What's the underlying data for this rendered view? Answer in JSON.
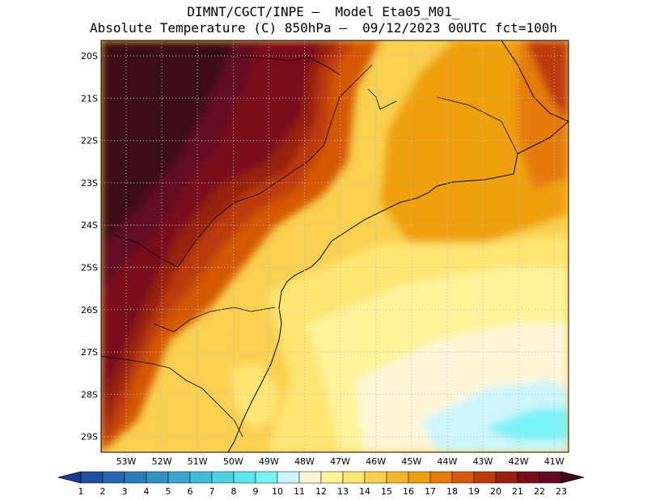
{
  "header": {
    "line1": "DIMNT/CGCT/INPE —  Model Eta05_M01_",
    "line2": "Absolute Temperature (C) 850hPa —  09/12/2023 00UTC fct=100h"
  },
  "map": {
    "lat_labels": [
      "20S",
      "21S",
      "22S",
      "23S",
      "24S",
      "25S",
      "26S",
      "27S",
      "28S",
      "29S"
    ],
    "lon_labels": [
      "53W",
      "52W",
      "51W",
      "50W",
      "49W",
      "48W",
      "47W",
      "46W",
      "45W",
      "44W",
      "43W",
      "42W",
      "41W"
    ]
  },
  "colorbar": {
    "labels": [
      "1",
      "2",
      "3",
      "4",
      "5",
      "6",
      "7",
      "8",
      "9",
      "10",
      "11",
      "12",
      "13",
      "14",
      "15",
      "16",
      "17",
      "18",
      "19",
      "20",
      "21",
      "22",
      "23"
    ],
    "colors": [
      "#1c3c8c",
      "#1f4f9e",
      "#2565ad",
      "#2b7bb8",
      "#3390c2",
      "#3aa6cc",
      "#43bcd6",
      "#4cd2e2",
      "#5ae6ee",
      "#78f3f6",
      "#cdf5fb",
      "#fff6d8",
      "#fff39a",
      "#ffe571",
      "#f9d050",
      "#f3b72f",
      "#efa010",
      "#e57a07",
      "#d45806",
      "#bb3a08",
      "#972010",
      "#7a0f1c",
      "#620a24",
      "#3e0a18"
    ]
  }
}
